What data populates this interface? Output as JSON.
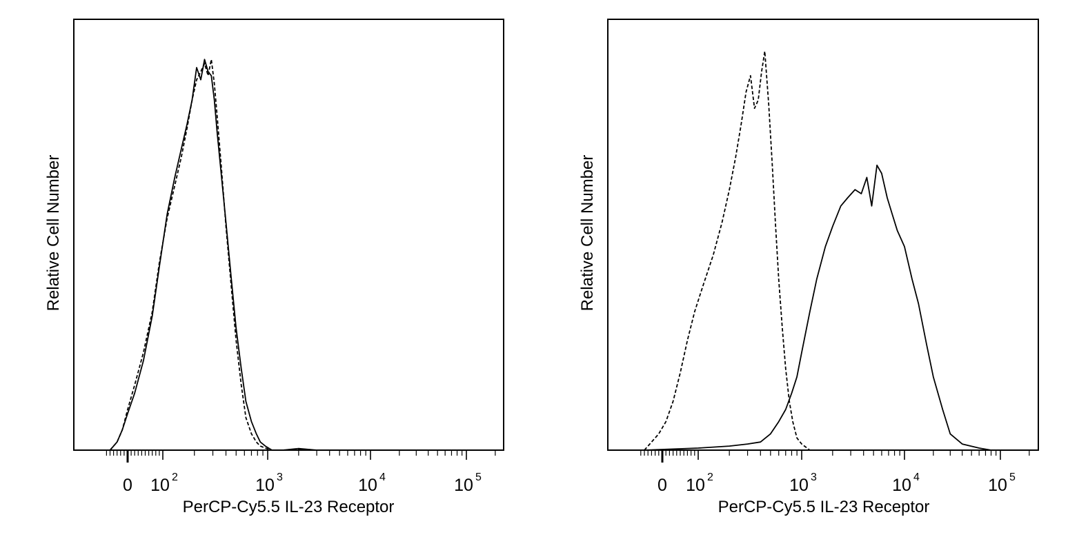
{
  "chart_data": [
    {
      "type": "area",
      "title": "",
      "xlabel": "PerCP-Cy5.5 IL-23 Receptor",
      "ylabel": "Relative Cell Number",
      "x_scale": "biexponential",
      "xlim": [
        -60,
        250000
      ],
      "ylim": [
        0,
        1
      ],
      "x_tick_labels": [
        {
          "value": 0,
          "base": "0",
          "exp": ""
        },
        {
          "value": 100,
          "base": "10",
          "exp": "2"
        },
        {
          "value": 1000,
          "base": "10",
          "exp": "3"
        },
        {
          "value": 10000,
          "base": "10",
          "exp": "4"
        },
        {
          "value": 100000,
          "base": "10",
          "exp": "5"
        }
      ],
      "grid": false,
      "legend": "none",
      "series": [
        {
          "style": "dashed",
          "x": [
            -50,
            -30,
            -15,
            0,
            20,
            45,
            70,
            90,
            110,
            130,
            150,
            170,
            190,
            210,
            230,
            250,
            270,
            290,
            310,
            330,
            360,
            400,
            450,
            500,
            560,
            620,
            700,
            780,
            850,
            950,
            1100,
            1400,
            2000,
            3000
          ],
          "y": [
            0.0,
            0.02,
            0.05,
            0.1,
            0.16,
            0.24,
            0.34,
            0.46,
            0.57,
            0.65,
            0.72,
            0.79,
            0.86,
            0.91,
            0.93,
            0.95,
            0.92,
            0.96,
            0.9,
            0.82,
            0.7,
            0.55,
            0.4,
            0.27,
            0.16,
            0.08,
            0.04,
            0.02,
            0.01,
            0.005,
            0.0,
            0.0,
            0.003,
            0.0
          ]
        },
        {
          "style": "solid",
          "x": [
            -50,
            -30,
            -15,
            0,
            20,
            45,
            70,
            90,
            110,
            130,
            150,
            170,
            190,
            210,
            230,
            250,
            270,
            290,
            310,
            330,
            360,
            400,
            450,
            500,
            560,
            620,
            700,
            780,
            850,
            950,
            1100,
            1400,
            2000,
            3000
          ],
          "y": [
            0.0,
            0.02,
            0.05,
            0.09,
            0.14,
            0.22,
            0.33,
            0.45,
            0.58,
            0.67,
            0.74,
            0.8,
            0.86,
            0.94,
            0.91,
            0.96,
            0.93,
            0.92,
            0.86,
            0.78,
            0.68,
            0.56,
            0.42,
            0.3,
            0.2,
            0.12,
            0.07,
            0.04,
            0.02,
            0.01,
            0.0,
            0.0,
            0.004,
            0.0
          ]
        }
      ]
    },
    {
      "type": "area",
      "title": "",
      "xlabel": "PerCP-Cy5.5 IL-23 Receptor",
      "ylabel": "Relative Cell Number",
      "x_scale": "biexponential",
      "xlim": [
        -60,
        250000
      ],
      "ylim": [
        0,
        1
      ],
      "x_tick_labels": [
        {
          "value": 0,
          "base": "0",
          "exp": ""
        },
        {
          "value": 100,
          "base": "10",
          "exp": "2"
        },
        {
          "value": 1000,
          "base": "10",
          "exp": "3"
        },
        {
          "value": 10000,
          "base": "10",
          "exp": "4"
        },
        {
          "value": 100000,
          "base": "10",
          "exp": "5"
        }
      ],
      "grid": false,
      "legend": "none",
      "series": [
        {
          "style": "dashed",
          "x": [
            -50,
            -30,
            -10,
            10,
            30,
            50,
            70,
            90,
            110,
            140,
            170,
            200,
            230,
            260,
            290,
            320,
            350,
            380,
            410,
            440,
            480,
            520,
            560,
            600,
            650,
            700,
            760,
            820,
            900,
            1000,
            1200,
            1600,
            3000,
            10000,
            60000
          ],
          "y": [
            0.0,
            0.02,
            0.04,
            0.07,
            0.12,
            0.19,
            0.27,
            0.34,
            0.4,
            0.48,
            0.56,
            0.64,
            0.72,
            0.8,
            0.88,
            0.92,
            0.84,
            0.86,
            0.93,
            0.98,
            0.85,
            0.7,
            0.55,
            0.42,
            0.3,
            0.2,
            0.12,
            0.07,
            0.03,
            0.015,
            0.0,
            0.0,
            0.0,
            0.0,
            0.0
          ]
        },
        {
          "style": "solid",
          "x": [
            -50,
            100,
            200,
            300,
            400,
            500,
            600,
            700,
            800,
            900,
            1000,
            1200,
            1400,
            1700,
            2000,
            2400,
            2800,
            3300,
            3800,
            4300,
            4800,
            5400,
            6000,
            6800,
            7600,
            8500,
            10000,
            12000,
            14000,
            17000,
            20000,
            25000,
            30000,
            40000,
            60000,
            80000
          ],
          "y": [
            0.0,
            0.005,
            0.01,
            0.015,
            0.02,
            0.04,
            0.07,
            0.1,
            0.14,
            0.18,
            0.24,
            0.34,
            0.42,
            0.5,
            0.55,
            0.6,
            0.62,
            0.64,
            0.63,
            0.67,
            0.6,
            0.7,
            0.68,
            0.62,
            0.58,
            0.54,
            0.5,
            0.42,
            0.36,
            0.26,
            0.18,
            0.1,
            0.04,
            0.015,
            0.005,
            0.0
          ]
        }
      ]
    }
  ]
}
